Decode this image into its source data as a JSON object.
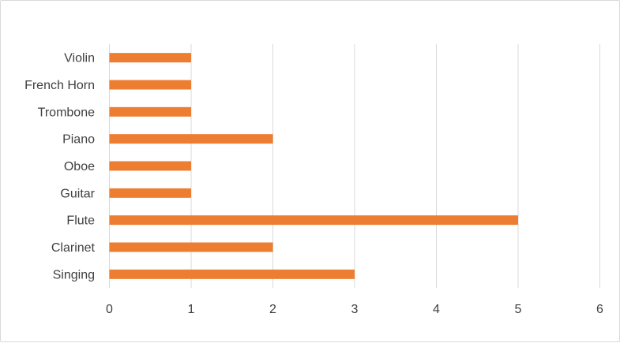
{
  "chart_data": {
    "type": "bar",
    "orientation": "horizontal",
    "categories": [
      "Violin",
      "French Horn",
      "Trombone",
      "Piano",
      "Oboe",
      "Guitar",
      "Flute",
      "Clarinet",
      "Singing"
    ],
    "values": [
      1,
      1,
      1,
      2,
      1,
      1,
      5,
      2,
      3
    ],
    "x_ticks": [
      "0",
      "1",
      "2",
      "3",
      "4",
      "5",
      "6"
    ],
    "xlim": [
      0,
      6
    ],
    "grid": "vertical",
    "legend": "none",
    "bar_color": "#ED7D31",
    "gridline_color": "#D9D9D9",
    "text_color": "#404040"
  }
}
